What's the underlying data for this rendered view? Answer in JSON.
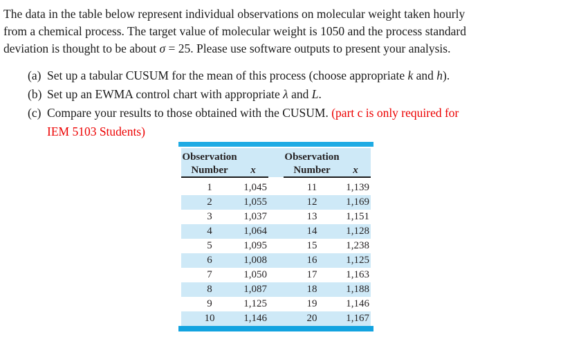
{
  "intro": {
    "line1": "The data in the table below represent individual observations on molecular weight taken hourly",
    "line2": "from a chemical process. The target value of molecular weight is 1050 and the process standard",
    "line3_pre": "deviation is thought to be about ",
    "sigma": "σ",
    "line3_post": " = 25. Please use software outputs to present your analysis."
  },
  "tasks": {
    "a": {
      "marker": "(a)",
      "pre": "Set up a tabular CUSUM for the mean of this process (choose appropriate ",
      "var1": "k",
      "mid": " and ",
      "var2": "h",
      "post": ")."
    },
    "b": {
      "marker": "(b)",
      "pre": "Set up an EWMA control chart with appropriate ",
      "var1": "λ",
      "mid": " and ",
      "var2": "L",
      "post": "."
    },
    "c": {
      "marker": "(c)",
      "pre": "Compare your results to those obtained with the CUSUM. ",
      "red_line1": "(part c is only required for",
      "red_line2": "IEM 5103 Students)"
    }
  },
  "table": {
    "header": {
      "group1": {
        "line1": "Observation",
        "line2": "Number",
        "x": "x"
      },
      "group2": {
        "line1": "Observation",
        "line2": "Number",
        "x": "x"
      }
    },
    "rows": [
      {
        "obs1": "1",
        "x1": "1,045",
        "obs2": "11",
        "x2": "1,139"
      },
      {
        "obs1": "2",
        "x1": "1,055",
        "obs2": "12",
        "x2": "1,169"
      },
      {
        "obs1": "3",
        "x1": "1,037",
        "obs2": "13",
        "x2": "1,151"
      },
      {
        "obs1": "4",
        "x1": "1,064",
        "obs2": "14",
        "x2": "1,128"
      },
      {
        "obs1": "5",
        "x1": "1,095",
        "obs2": "15",
        "x2": "1,238"
      },
      {
        "obs1": "6",
        "x1": "1,008",
        "obs2": "16",
        "x2": "1,125"
      },
      {
        "obs1": "7",
        "x1": "1,050",
        "obs2": "17",
        "x2": "1,163"
      },
      {
        "obs1": "8",
        "x1": "1,087",
        "obs2": "18",
        "x2": "1,188"
      },
      {
        "obs1": "9",
        "x1": "1,125",
        "obs2": "19",
        "x2": "1,146"
      },
      {
        "obs1": "10",
        "x1": "1,146",
        "obs2": "20",
        "x2": "1,167"
      }
    ]
  },
  "colors": {
    "bar-top": "#1fabe4",
    "bar-bottom": "#12a3e0",
    "stripe": "#cee9f7",
    "header-bg": "#cee9f7",
    "red-text": "#ec0000",
    "text": "#1a1a1a"
  }
}
